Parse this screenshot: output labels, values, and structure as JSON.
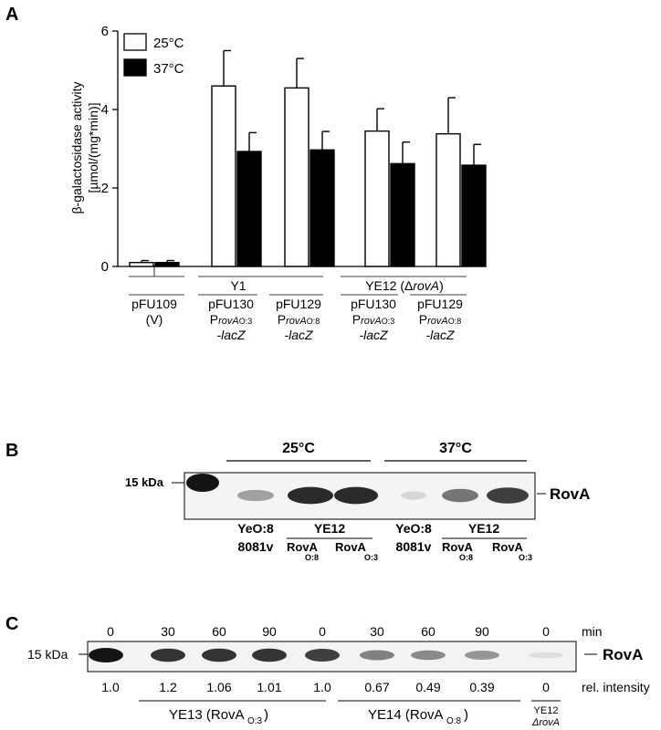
{
  "panel_a": {
    "label": "A",
    "chart_data": {
      "type": "bar",
      "ylabel_line1": "β-galactosidase activity",
      "ylabel_line2": "[µmol/(mg*min)]",
      "ylim": [
        0,
        6
      ],
      "yticks": [
        "0",
        "2",
        "4",
        "6"
      ],
      "series": [
        {
          "name": "25°C",
          "color": "#ffffff",
          "values": [
            0.1,
            4.6,
            4.55,
            3.45,
            3.38
          ],
          "errors": [
            0.05,
            0.9,
            0.75,
            0.57,
            0.92
          ]
        },
        {
          "name": "37°C",
          "color": "#000000",
          "values": [
            0.1,
            2.93,
            2.97,
            2.62,
            2.58
          ],
          "errors": [
            0.05,
            0.48,
            0.47,
            0.55,
            0.53
          ]
        }
      ],
      "groups": [
        {
          "name": "",
          "plasmid": "pFU109",
          "promoter": "(V)",
          "sub": "",
          "suffix": ""
        },
        {
          "name": "",
          "plasmid": "pFU130",
          "promoter": "ProvA",
          "sub": "O:3",
          "suffix": "-lacZ"
        },
        {
          "name": "",
          "plasmid": "pFU129",
          "promoter": "ProvA",
          "sub": "O:8",
          "suffix": "-lacZ"
        },
        {
          "name": "",
          "plasmid": "pFU130",
          "promoter": "ProvA",
          "sub": "O:3",
          "suffix": "-lacZ"
        },
        {
          "name": "",
          "plasmid": "pFU129",
          "promoter": "ProvA",
          "sub": "O:8",
          "suffix": "-lacZ"
        }
      ],
      "strain_labels": [
        {
          "text": "Y1",
          "span": [
            1,
            2
          ]
        },
        {
          "text": "YE12 (ΔrovA)",
          "span": [
            3,
            4
          ]
        }
      ]
    }
  },
  "panel_b": {
    "label": "B",
    "marker": "15 kDa",
    "band_label": "RovA",
    "temp_25": "25°C",
    "temp_37": "37°C",
    "lanes_25": [
      {
        "line1": "YeO:8",
        "line2": "8081v"
      },
      {
        "line1": "YE12",
        "line2": ""
      },
      {
        "rova1": "RovA",
        "sub1": "O:8",
        "rova2": "RovA",
        "sub2": "O:3"
      }
    ],
    "lanes_37": [
      {
        "line1": "YeO:8",
        "line2": "8081v"
      },
      {
        "line1": "YE12",
        "line2": ""
      },
      {
        "rova1": "RovA",
        "sub1": "O:8",
        "rova2": "RovA",
        "sub2": "O:3"
      }
    ],
    "band_intensity": [
      1.0,
      0.35,
      0.9,
      0.9,
      0.1,
      0.55,
      0.8
    ]
  },
  "panel_c": {
    "label": "C",
    "marker": "15 kDa",
    "band_label": "RovA",
    "time_unit": "min",
    "rel_label": "rel. intensity",
    "times": [
      "0",
      "30",
      "60",
      "90",
      "0",
      "30",
      "60",
      "90",
      "0"
    ],
    "intensities": [
      "1.0",
      "1.2",
      "1.06",
      "1.01",
      "1.0",
      "0.67",
      "0.49",
      "0.39",
      "0"
    ],
    "band_strength": [
      1.0,
      0.85,
      0.85,
      0.85,
      0.8,
      0.5,
      0.45,
      0.4,
      0.06
    ],
    "group1": "YE13 (RovA",
    "group1_sub": "O:3",
    "group2": "YE14 (RovA",
    "group2_sub": "O:8",
    "group3_line1": "YE12",
    "group3_line2": "ΔrovA"
  }
}
